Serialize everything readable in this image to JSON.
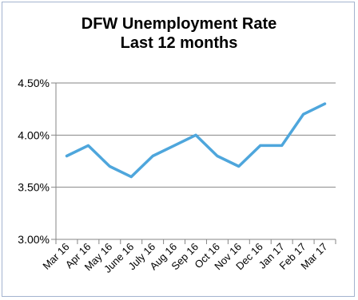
{
  "chart_data": {
    "type": "line",
    "title_lines": [
      "DFW Unemployment Rate",
      "Last 12 months"
    ],
    "categories": [
      "Mar 16",
      "Apr 16",
      "May 16",
      "June 16",
      "July 16",
      "Aug 16",
      "Sep 16",
      "Oct 16",
      "Nov 16",
      "Dec 16",
      "Jan 17",
      "Feb 17",
      "Mar 17"
    ],
    "series": [
      {
        "values": [
          3.8,
          3.9,
          3.7,
          3.6,
          3.8,
          3.9,
          4.0,
          3.8,
          3.7,
          3.9,
          3.9,
          4.2,
          4.3
        ]
      }
    ],
    "ylim": [
      3.0,
      4.5
    ],
    "yticks": [
      "3.00%",
      "3.50%",
      "4.00%",
      "4.50%"
    ],
    "ytick_values": [
      3.0,
      3.5,
      4.0,
      4.5
    ],
    "grid": true,
    "colors": {
      "line": "#4ea6dc",
      "grid": "#868686",
      "axis": "#868686",
      "frame": "#a3b3cf"
    }
  }
}
